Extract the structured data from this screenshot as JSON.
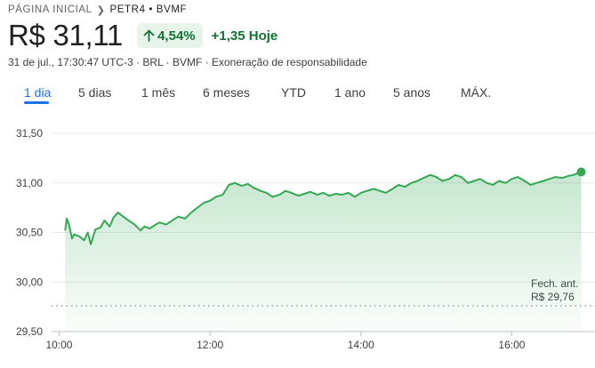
{
  "breadcrumb": {
    "home": "PÁGINA INICIAL",
    "current": "PETR4 • BVMF"
  },
  "quote": {
    "price": "R$ 31,11",
    "change_percent": "4,54%",
    "change_abs": "+1,35 Hoje",
    "meta_prefix": "31 de jul., 17:30:47 UTC-3 · BRL · BVMF · ",
    "disclaimer": "Exoneração de responsabilidade"
  },
  "tabs": [
    {
      "label": "1 dia",
      "active": true
    },
    {
      "label": "5 dias",
      "active": false
    },
    {
      "label": "1 mês",
      "active": false
    },
    {
      "label": "6 meses",
      "active": false
    },
    {
      "label": "YTD",
      "active": false
    },
    {
      "label": "1 ano",
      "active": false
    },
    {
      "label": "5 anos",
      "active": false
    },
    {
      "label": "MÁX.",
      "active": false
    }
  ],
  "colors": {
    "accent": "#1a73e8",
    "up": "#137333",
    "line": "#34a853",
    "pill_bg": "#e6f4ea"
  },
  "chart_data": {
    "type": "area",
    "ylim": [
      29.5,
      31.5
    ],
    "xlim": [
      9.9,
      16.95
    ],
    "y_ticks": [
      "31,50",
      "31,00",
      "30,50",
      "30,00",
      "29,50"
    ],
    "y_tick_values": [
      31.5,
      31.0,
      30.5,
      30.0,
      29.5
    ],
    "x_ticks": [
      "10:00",
      "12:00",
      "14:00",
      "16:00"
    ],
    "x_tick_values": [
      10,
      12,
      14,
      16
    ],
    "previous_close": 29.76,
    "previous_close_label": [
      "Fech. ant.",
      "R$ 29,76"
    ],
    "grid": true,
    "series": [
      {
        "x": [
          10.08,
          10.1,
          10.13,
          10.17,
          10.2,
          10.27,
          10.33,
          10.38,
          10.42,
          10.48,
          10.55,
          10.6,
          10.67,
          10.72,
          10.78,
          10.85,
          10.92,
          11.0,
          11.08,
          11.13,
          11.2,
          11.28,
          11.33,
          11.42,
          11.5,
          11.58,
          11.67,
          11.75,
          11.85,
          11.92,
          12.0,
          12.08,
          12.17,
          12.25,
          12.33,
          12.42,
          12.5,
          12.58,
          12.67,
          12.75,
          12.83,
          12.92,
          13.0,
          13.08,
          13.17,
          13.25,
          13.33,
          13.42,
          13.5,
          13.58,
          13.67,
          13.75,
          13.83,
          13.92,
          14.0,
          14.08,
          14.17,
          14.25,
          14.33,
          14.42,
          14.5,
          14.58,
          14.67,
          14.75,
          14.83,
          14.92,
          15.0,
          15.08,
          15.17,
          15.25,
          15.33,
          15.42,
          15.5,
          15.58,
          15.67,
          15.75,
          15.83,
          15.92,
          16.0,
          16.08,
          16.17,
          16.25,
          16.33,
          16.42,
          16.5,
          16.58,
          16.67,
          16.75,
          16.82,
          16.88,
          16.92
        ],
        "y": [
          30.52,
          30.64,
          30.58,
          30.44,
          30.48,
          30.46,
          30.42,
          30.5,
          30.38,
          30.53,
          30.55,
          30.62,
          30.56,
          30.65,
          30.7,
          30.66,
          30.62,
          30.58,
          30.52,
          30.56,
          30.54,
          30.58,
          30.6,
          30.58,
          30.62,
          30.66,
          30.64,
          30.7,
          30.76,
          30.8,
          30.82,
          30.86,
          30.88,
          30.98,
          31.0,
          30.97,
          30.99,
          30.95,
          30.92,
          30.9,
          30.86,
          30.88,
          30.92,
          30.9,
          30.87,
          30.89,
          30.91,
          30.88,
          30.9,
          30.87,
          30.89,
          30.88,
          30.9,
          30.86,
          30.9,
          30.92,
          30.94,
          30.92,
          30.9,
          30.94,
          30.98,
          30.96,
          31.0,
          31.02,
          31.05,
          31.08,
          31.06,
          31.02,
          31.04,
          31.08,
          31.06,
          31.0,
          31.02,
          31.04,
          31.0,
          30.98,
          31.02,
          31.0,
          31.04,
          31.06,
          31.02,
          30.98,
          31.0,
          31.02,
          31.04,
          31.06,
          31.05,
          31.07,
          31.08,
          31.1,
          31.11
        ]
      }
    ]
  }
}
